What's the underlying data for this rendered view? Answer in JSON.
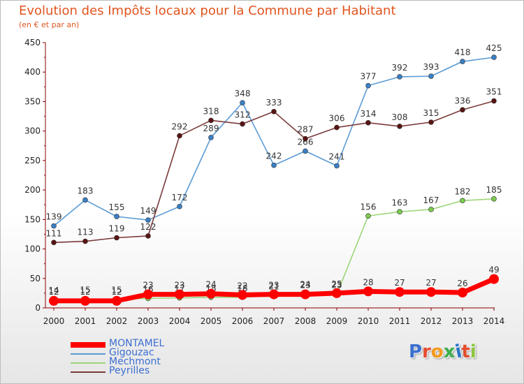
{
  "title": "Evolution des Impôts locaux pour la Commune par Habitant",
  "subtitle": "(en € et par an)",
  "brand": {
    "text": "Proxiti",
    "letter_colors": [
      "#3b6fd0",
      "#e24c2c",
      "#f29a1c",
      "#3cae4a",
      "#2b76c7",
      "#e24c2c",
      "#8cc63f"
    ]
  },
  "chart_data": {
    "type": "line",
    "title": "Evolution des Impôts locaux pour la Commune par Habitant",
    "subtitle": "(en € et par an)",
    "xlabel": "",
    "ylabel": "",
    "ylim": [
      0,
      450
    ],
    "yticks": [
      0,
      50,
      100,
      150,
      200,
      250,
      300,
      350,
      400,
      450
    ],
    "grid": false,
    "legend_position": "bottom-left",
    "x": [
      "2000",
      "2001",
      "2002",
      "2003",
      "2004",
      "2005",
      "2006",
      "2007",
      "2008",
      "2009",
      "2010",
      "2011",
      "2012",
      "2013",
      "2014"
    ],
    "series": [
      {
        "name": "Gigouzac",
        "color": "#5b9bd5",
        "marker": "#3a7fc4",
        "values": [
          139,
          183,
          155,
          149,
          172,
          289,
          348,
          242,
          266,
          241,
          377,
          392,
          393,
          418,
          425
        ]
      },
      {
        "name": "Peyrilles",
        "color": "#7b3a3a",
        "marker": "#5a1414",
        "values": [
          111,
          113,
          119,
          122,
          292,
          318,
          312,
          333,
          287,
          306,
          314,
          308,
          315,
          336,
          351
        ]
      },
      {
        "name": "Mechmont",
        "color": "#9dd67a",
        "marker": "#7ccb50",
        "values": [
          14,
          15,
          15,
          16,
          17,
          18,
          18,
          21,
          24,
          23,
          156,
          163,
          167,
          182,
          185
        ]
      },
      {
        "name": "MONTAMEL",
        "color": "#ff0000",
        "marker": "#ff0000",
        "values": [
          12,
          12,
          12,
          23,
          23,
          24,
          22,
          23,
          23,
          25,
          28,
          27,
          27,
          26,
          49
        ]
      }
    ],
    "legend": [
      "MONTAMEL",
      "Gigouzac",
      "Mechmont",
      "Peyrilles"
    ]
  }
}
